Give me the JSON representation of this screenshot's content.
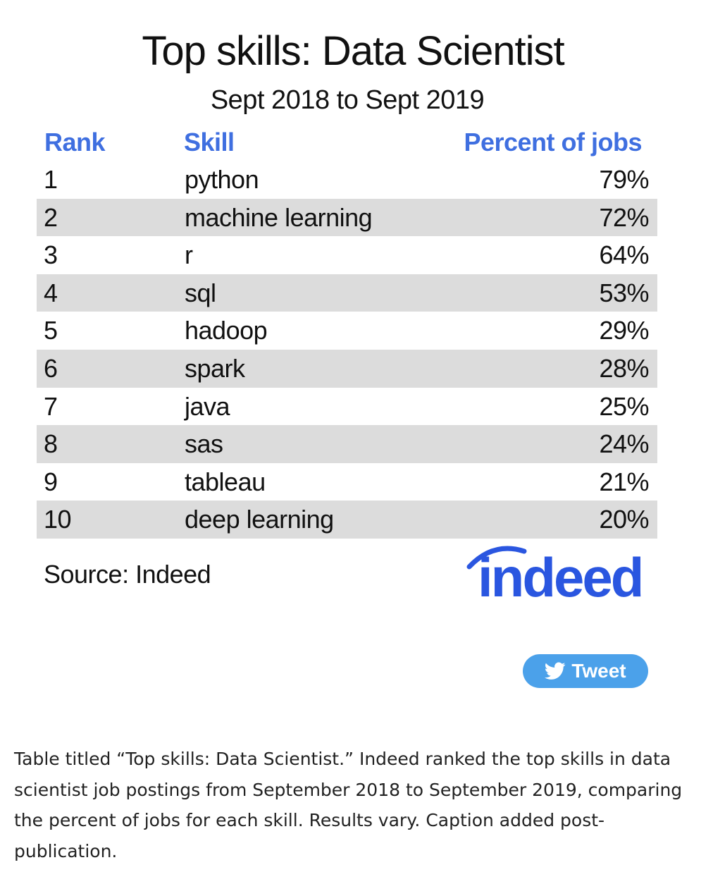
{
  "title": "Top skills: Data Scientist",
  "subtitle": "Sept 2018 to Sept 2019",
  "header": {
    "rank": "Rank",
    "skill": "Skill",
    "percent": "Percent of jobs"
  },
  "rows": [
    {
      "rank": "1",
      "skill": "python",
      "percent": "79%"
    },
    {
      "rank": "2",
      "skill": "machine learning",
      "percent": "72%"
    },
    {
      "rank": "3",
      "skill": "r",
      "percent": "64%"
    },
    {
      "rank": "4",
      "skill": "sql",
      "percent": "53%"
    },
    {
      "rank": "5",
      "skill": "hadoop",
      "percent": "29%"
    },
    {
      "rank": "6",
      "skill": "spark",
      "percent": "28%"
    },
    {
      "rank": "7",
      "skill": "java",
      "percent": "25%"
    },
    {
      "rank": "8",
      "skill": "sas",
      "percent": "24%"
    },
    {
      "rank": "9",
      "skill": "tableau",
      "percent": "21%"
    },
    {
      "rank": "10",
      "skill": "deep learning",
      "percent": "20%"
    }
  ],
  "source": "Source: Indeed",
  "logo_text": "indeed",
  "tweet_label": "Tweet",
  "tweet_icon": "twitter-bird-icon",
  "caption": "Table titled “Top skills: Data Scientist.” Indeed ranked the top skills in data scientist job postings from September 2018 to September 2019, comparing the percent of jobs for each skill. Results vary. Caption added post-publication.",
  "colors": {
    "header": "#3f6fe0",
    "row_shade": "#dcdcdc",
    "logo": "#2a56e0",
    "tweet": "#4ba1ea"
  }
}
